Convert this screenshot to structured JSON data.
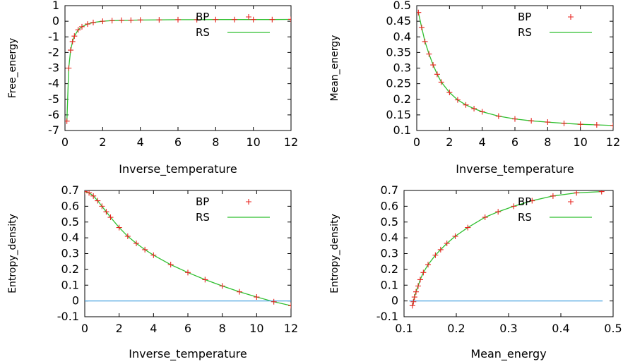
{
  "figure": {
    "colors": {
      "bp": "#e8231e",
      "rs": "#2fbf2f",
      "zero_line": "#4aa3df",
      "axes": "#000000"
    }
  },
  "chart_data": [
    {
      "type": "scatter",
      "xlabel": "Inverse_temperature",
      "ylabel": "Free_energy",
      "xlim": [
        0,
        12
      ],
      "ylim": [
        -7,
        1
      ],
      "xticks": [
        0,
        2,
        4,
        6,
        8,
        10,
        12
      ],
      "yticks": [
        -7,
        -6,
        -5,
        -4,
        -3,
        -2,
        -1,
        0,
        1
      ],
      "legend": "top-right",
      "series": [
        {
          "name": "BP",
          "style": "markers",
          "color": "#e8231e",
          "x": [
            0.1,
            0.2,
            0.3,
            0.4,
            0.5,
            0.7,
            0.9,
            1.2,
            1.5,
            2.0,
            2.5,
            3.0,
            3.5,
            4.0,
            5.0,
            6.0,
            7.0,
            8.0,
            9.0,
            10.0,
            11.0,
            12.0
          ],
          "y": [
            -6.4,
            -3.0,
            -1.85,
            -1.3,
            -0.95,
            -0.55,
            -0.35,
            -0.18,
            -0.08,
            0.0,
            0.04,
            0.06,
            0.07,
            0.08,
            0.09,
            0.1,
            0.1,
            0.11,
            0.11,
            0.11,
            0.11,
            0.12
          ]
        },
        {
          "name": "RS",
          "style": "line",
          "color": "#2fbf2f",
          "x": [
            0.1,
            0.2,
            0.3,
            0.4,
            0.5,
            0.7,
            0.9,
            1.2,
            1.5,
            2.0,
            2.5,
            3.0,
            3.5,
            4.0,
            5.0,
            6.0,
            7.0,
            8.0,
            9.0,
            10.0,
            11.0,
            12.0
          ],
          "y": [
            -6.4,
            -3.0,
            -1.85,
            -1.3,
            -0.95,
            -0.55,
            -0.35,
            -0.18,
            -0.08,
            0.0,
            0.04,
            0.06,
            0.07,
            0.08,
            0.09,
            0.1,
            0.1,
            0.11,
            0.11,
            0.11,
            0.11,
            0.12
          ]
        }
      ]
    },
    {
      "type": "scatter",
      "xlabel": "Inverse_temperature",
      "ylabel": "Mean_energy",
      "xlim": [
        0,
        12
      ],
      "ylim": [
        0.1,
        0.5
      ],
      "xticks": [
        0,
        2,
        4,
        6,
        8,
        10,
        12
      ],
      "yticks": [
        0.1,
        0.15,
        0.2,
        0.25,
        0.3,
        0.35,
        0.4,
        0.45,
        0.5
      ],
      "legend": "top-right",
      "series": [
        {
          "name": "BP",
          "style": "markers",
          "color": "#e8231e",
          "x": [
            0.1,
            0.3,
            0.5,
            0.75,
            1.0,
            1.25,
            1.5,
            2.0,
            2.5,
            3.0,
            3.5,
            4.0,
            5.0,
            6.0,
            7.0,
            8.0,
            9.0,
            10.0,
            11.0,
            12.0
          ],
          "y": [
            0.478,
            0.43,
            0.385,
            0.345,
            0.31,
            0.28,
            0.255,
            0.222,
            0.198,
            0.182,
            0.17,
            0.16,
            0.146,
            0.137,
            0.131,
            0.127,
            0.123,
            0.12,
            0.118,
            0.116
          ]
        },
        {
          "name": "RS",
          "style": "line",
          "color": "#2fbf2f",
          "x": [
            0.1,
            0.3,
            0.5,
            0.75,
            1.0,
            1.25,
            1.5,
            2.0,
            2.5,
            3.0,
            3.5,
            4.0,
            5.0,
            6.0,
            7.0,
            8.0,
            9.0,
            10.0,
            11.0,
            12.0
          ],
          "y": [
            0.478,
            0.43,
            0.385,
            0.345,
            0.31,
            0.28,
            0.255,
            0.222,
            0.198,
            0.182,
            0.17,
            0.16,
            0.146,
            0.137,
            0.131,
            0.127,
            0.123,
            0.12,
            0.118,
            0.116
          ]
        }
      ]
    },
    {
      "type": "scatter",
      "xlabel": "Inverse_temperature",
      "ylabel": "Entropy_density",
      "xlim": [
        0,
        12
      ],
      "ylim": [
        -0.1,
        0.7
      ],
      "xticks": [
        0,
        2,
        4,
        6,
        8,
        10,
        12
      ],
      "yticks": [
        -0.1,
        0,
        0.1,
        0.2,
        0.3,
        0.4,
        0.5,
        0.6,
        0.7
      ],
      "legend": "top-right",
      "series": [
        {
          "name": "BP",
          "style": "markers",
          "color": "#e8231e",
          "x": [
            0.0,
            0.25,
            0.5,
            0.75,
            1.0,
            1.25,
            1.5,
            2.0,
            2.5,
            3.0,
            3.5,
            4.0,
            5.0,
            6.0,
            7.0,
            8.0,
            9.0,
            10.0,
            11.0,
            12.0
          ],
          "y": [
            0.693,
            0.685,
            0.665,
            0.635,
            0.6,
            0.565,
            0.53,
            0.465,
            0.41,
            0.365,
            0.325,
            0.29,
            0.23,
            0.18,
            0.135,
            0.095,
            0.058,
            0.025,
            -0.005,
            -0.03
          ]
        },
        {
          "name": "RS",
          "style": "line",
          "color": "#2fbf2f",
          "x": [
            0.0,
            0.25,
            0.5,
            0.75,
            1.0,
            1.25,
            1.5,
            2.0,
            2.5,
            3.0,
            3.5,
            4.0,
            5.0,
            6.0,
            7.0,
            8.0,
            9.0,
            10.0,
            11.0,
            12.0
          ],
          "y": [
            0.693,
            0.685,
            0.665,
            0.635,
            0.6,
            0.565,
            0.53,
            0.465,
            0.41,
            0.365,
            0.325,
            0.29,
            0.23,
            0.18,
            0.135,
            0.095,
            0.058,
            0.025,
            -0.005,
            -0.03
          ]
        },
        {
          "name": "",
          "style": "line",
          "color": "#4aa3df",
          "x": [
            0,
            12
          ],
          "y": [
            0,
            0
          ]
        }
      ]
    },
    {
      "type": "scatter",
      "xlabel": "Mean_energy",
      "ylabel": "Entropy_density",
      "xlim": [
        0.1,
        0.5
      ],
      "ylim": [
        -0.1,
        0.7
      ],
      "xticks": [
        0.1,
        0.2,
        0.3,
        0.4,
        0.5
      ],
      "yticks": [
        -0.1,
        0,
        0.1,
        0.2,
        0.3,
        0.4,
        0.5,
        0.6,
        0.7
      ],
      "legend": "top-right",
      "series": [
        {
          "name": "BP",
          "style": "markers",
          "color": "#e8231e",
          "x": [
            0.116,
            0.118,
            0.12,
            0.123,
            0.127,
            0.131,
            0.137,
            0.146,
            0.16,
            0.17,
            0.182,
            0.198,
            0.222,
            0.255,
            0.28,
            0.31,
            0.345,
            0.385,
            0.43,
            0.478
          ],
          "y": [
            -0.03,
            -0.005,
            0.025,
            0.058,
            0.095,
            0.135,
            0.18,
            0.23,
            0.29,
            0.325,
            0.365,
            0.41,
            0.465,
            0.53,
            0.565,
            0.6,
            0.635,
            0.665,
            0.685,
            0.693
          ]
        },
        {
          "name": "RS",
          "style": "line",
          "color": "#2fbf2f",
          "x": [
            0.116,
            0.118,
            0.12,
            0.123,
            0.127,
            0.131,
            0.137,
            0.146,
            0.16,
            0.17,
            0.182,
            0.198,
            0.222,
            0.255,
            0.28,
            0.31,
            0.345,
            0.385,
            0.43,
            0.478
          ],
          "y": [
            -0.03,
            -0.005,
            0.025,
            0.058,
            0.095,
            0.135,
            0.18,
            0.23,
            0.29,
            0.325,
            0.365,
            0.41,
            0.465,
            0.53,
            0.565,
            0.6,
            0.635,
            0.665,
            0.685,
            0.693
          ]
        },
        {
          "name": "",
          "style": "line",
          "color": "#4aa3df",
          "x": [
            0.11,
            0.48
          ],
          "y": [
            0,
            0
          ]
        }
      ]
    }
  ]
}
